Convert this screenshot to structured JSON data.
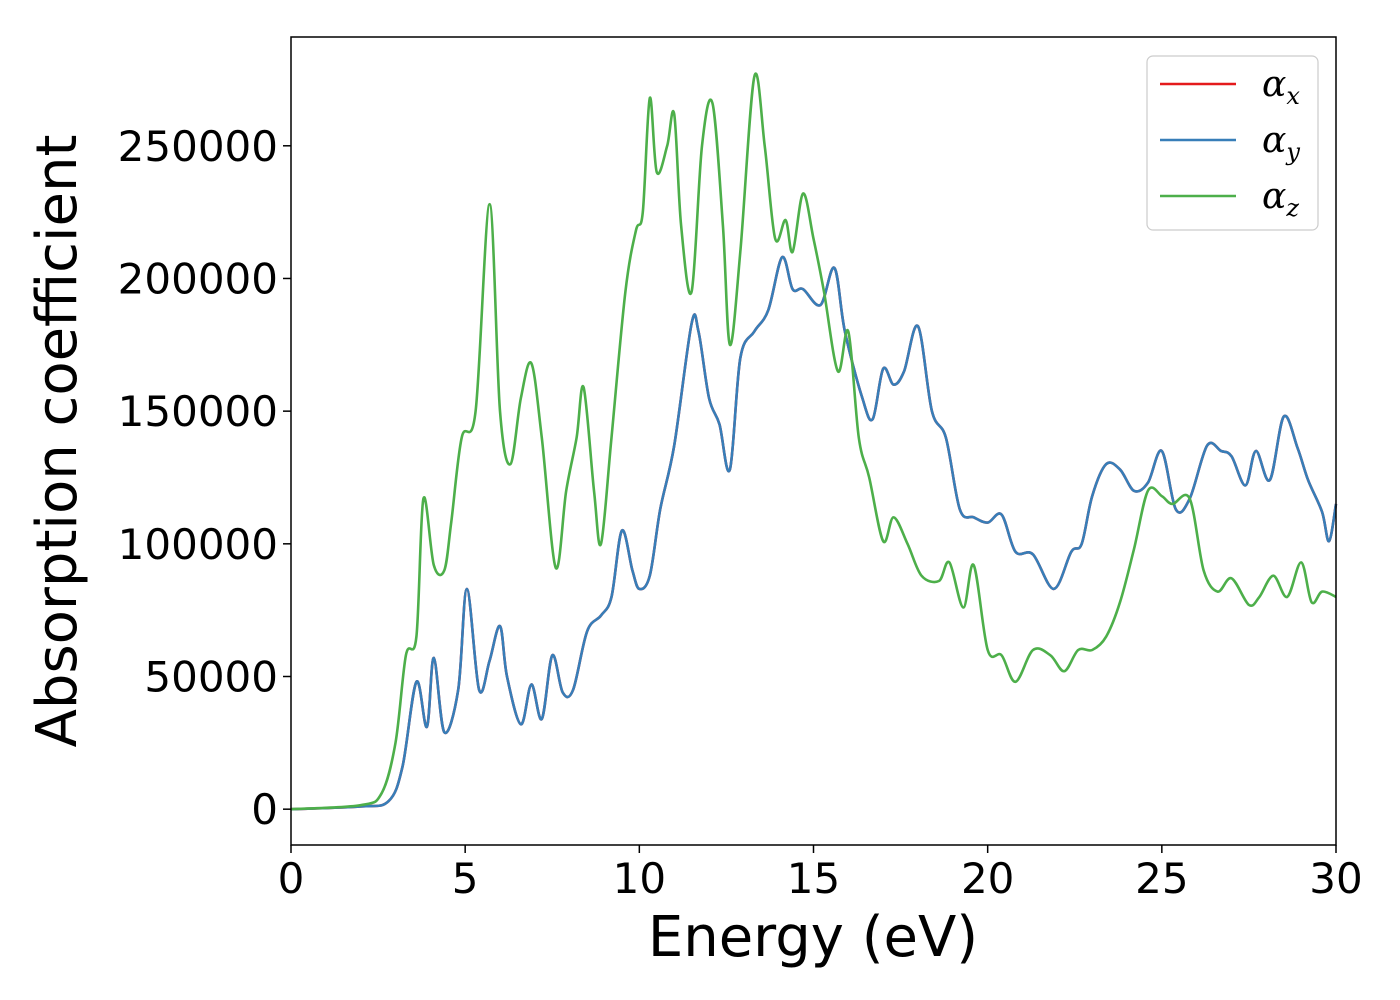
{
  "chart_data": {
    "type": "line",
    "xlabel": "Energy (eV)",
    "ylabel": "Absorption coefficient",
    "xlim": [
      0,
      30
    ],
    "ylim": [
      -13500,
      291000
    ],
    "xticks": [
      0,
      5,
      10,
      15,
      20,
      25,
      30
    ],
    "xtick_labels": [
      "0",
      "5",
      "10",
      "15",
      "20",
      "25",
      "30"
    ],
    "yticks": [
      0,
      50000,
      100000,
      150000,
      200000,
      250000
    ],
    "ytick_labels": [
      "0",
      "50000",
      "100000",
      "150000",
      "200000",
      "250000"
    ],
    "grid": false,
    "legend_position": "top-right",
    "series": [
      {
        "name": "α_x",
        "legend_base": "α",
        "legend_sub": "x",
        "color": "#e41a1c",
        "x": [
          0,
          2.0,
          2.8,
          3.2,
          3.6,
          3.9,
          4.1,
          4.4,
          4.8,
          5.05,
          5.4,
          5.7,
          6.0,
          6.2,
          6.6,
          6.9,
          7.2,
          7.5,
          7.8,
          8.1,
          8.5,
          8.9,
          9.2,
          9.5,
          9.8,
          10.0,
          10.3,
          10.6,
          11.0,
          11.5,
          11.7,
          12.0,
          12.3,
          12.6,
          12.9,
          13.3,
          13.7,
          14.1,
          14.4,
          14.7,
          15.2,
          15.6,
          15.9,
          16.4,
          16.7,
          17.0,
          17.3,
          17.6,
          18.0,
          18.4,
          18.8,
          19.2,
          19.6,
          20.0,
          20.4,
          20.8,
          21.3,
          21.9,
          22.4,
          22.7,
          23.0,
          23.4,
          23.8,
          24.2,
          24.6,
          25.0,
          25.4,
          25.8,
          26.3,
          26.7,
          27.0,
          27.4,
          27.7,
          28.1,
          28.5,
          28.9,
          29.2,
          29.6,
          29.8,
          30.0
        ],
        "y": [
          0,
          1000,
          3000,
          16000,
          48000,
          31000,
          57000,
          29000,
          45000,
          83000,
          45000,
          56000,
          69000,
          50000,
          32000,
          47000,
          34000,
          58000,
          44000,
          45000,
          67000,
          73000,
          80000,
          105000,
          90000,
          83000,
          88000,
          113000,
          137000,
          183000,
          180000,
          155000,
          145000,
          128000,
          170000,
          180000,
          188000,
          208000,
          196000,
          196000,
          190000,
          204000,
          180000,
          155000,
          147000,
          166000,
          160000,
          165000,
          182000,
          150000,
          140000,
          113000,
          110000,
          108000,
          111000,
          97000,
          96000,
          83000,
          97000,
          100000,
          118000,
          130000,
          128000,
          120000,
          123000,
          135000,
          113000,
          117000,
          137000,
          135000,
          133000,
          122000,
          135000,
          124000,
          148000,
          136000,
          124000,
          112000,
          101000,
          115000
        ]
      },
      {
        "name": "α_y",
        "legend_base": "α",
        "legend_sub": "y",
        "color": "#377eb8",
        "x": [
          0,
          2.0,
          2.8,
          3.2,
          3.6,
          3.9,
          4.1,
          4.4,
          4.8,
          5.05,
          5.4,
          5.7,
          6.0,
          6.2,
          6.6,
          6.9,
          7.2,
          7.5,
          7.8,
          8.1,
          8.5,
          8.9,
          9.2,
          9.5,
          9.8,
          10.0,
          10.3,
          10.6,
          11.0,
          11.5,
          11.7,
          12.0,
          12.3,
          12.6,
          12.9,
          13.3,
          13.7,
          14.1,
          14.4,
          14.7,
          15.2,
          15.6,
          15.9,
          16.4,
          16.7,
          17.0,
          17.3,
          17.6,
          18.0,
          18.4,
          18.8,
          19.2,
          19.6,
          20.0,
          20.4,
          20.8,
          21.3,
          21.9,
          22.4,
          22.7,
          23.0,
          23.4,
          23.8,
          24.2,
          24.6,
          25.0,
          25.4,
          25.8,
          26.3,
          26.7,
          27.0,
          27.4,
          27.7,
          28.1,
          28.5,
          28.9,
          29.2,
          29.6,
          29.8,
          30.0
        ],
        "y": [
          0,
          1000,
          3000,
          16000,
          48000,
          31000,
          57000,
          29000,
          45000,
          83000,
          45000,
          56000,
          69000,
          50000,
          32000,
          47000,
          34000,
          58000,
          44000,
          45000,
          67000,
          73000,
          80000,
          105000,
          90000,
          83000,
          88000,
          113000,
          137000,
          183000,
          180000,
          155000,
          145000,
          128000,
          170000,
          180000,
          188000,
          208000,
          196000,
          196000,
          190000,
          204000,
          180000,
          155000,
          147000,
          166000,
          160000,
          165000,
          182000,
          150000,
          140000,
          113000,
          110000,
          108000,
          111000,
          97000,
          96000,
          83000,
          97000,
          100000,
          118000,
          130000,
          128000,
          120000,
          123000,
          135000,
          113000,
          117000,
          137000,
          135000,
          133000,
          122000,
          135000,
          124000,
          148000,
          136000,
          124000,
          112000,
          101000,
          115000
        ]
      },
      {
        "name": "α_z",
        "legend_base": "α",
        "legend_sub": "z",
        "color": "#4daf4a",
        "x": [
          0,
          2.0,
          2.6,
          3.0,
          3.3,
          3.6,
          3.8,
          4.1,
          4.4,
          4.6,
          4.9,
          5.3,
          5.7,
          6.0,
          6.3,
          6.6,
          6.9,
          7.2,
          7.6,
          7.9,
          8.2,
          8.4,
          8.7,
          8.9,
          9.2,
          9.6,
          9.9,
          10.1,
          10.3,
          10.5,
          10.8,
          11.0,
          11.2,
          11.5,
          11.8,
          12.1,
          12.4,
          12.6,
          12.9,
          13.3,
          13.6,
          13.9,
          14.2,
          14.4,
          14.7,
          15.0,
          15.3,
          15.7,
          16.0,
          16.3,
          16.6,
          17.0,
          17.3,
          17.7,
          18.1,
          18.6,
          18.9,
          19.3,
          19.6,
          20.0,
          20.4,
          20.8,
          21.3,
          21.8,
          22.2,
          22.6,
          23.0,
          23.4,
          23.8,
          24.2,
          24.6,
          25.0,
          25.3,
          25.8,
          26.2,
          26.6,
          27.0,
          27.5,
          27.8,
          28.2,
          28.6,
          29.0,
          29.3,
          29.6,
          30.0
        ],
        "y": [
          0,
          1500,
          6000,
          25000,
          58000,
          65000,
          117000,
          92000,
          90000,
          108000,
          140000,
          150000,
          228000,
          150000,
          130000,
          155000,
          168000,
          140000,
          91000,
          120000,
          140000,
          159000,
          120000,
          100000,
          140000,
          195000,
          218000,
          225000,
          268000,
          240000,
          250000,
          262000,
          220000,
          195000,
          250000,
          266000,
          220000,
          175000,
          210000,
          276000,
          250000,
          215000,
          222000,
          210000,
          232000,
          215000,
          195000,
          165000,
          180000,
          140000,
          125000,
          101000,
          110000,
          100000,
          88000,
          86000,
          93000,
          76000,
          92000,
          60000,
          58000,
          48000,
          60000,
          58000,
          52000,
          60000,
          60000,
          65000,
          78000,
          98000,
          120000,
          118000,
          115000,
          117000,
          90000,
          82000,
          87000,
          77000,
          80000,
          88000,
          80000,
          93000,
          78000,
          82000,
          80000
        ]
      }
    ]
  }
}
